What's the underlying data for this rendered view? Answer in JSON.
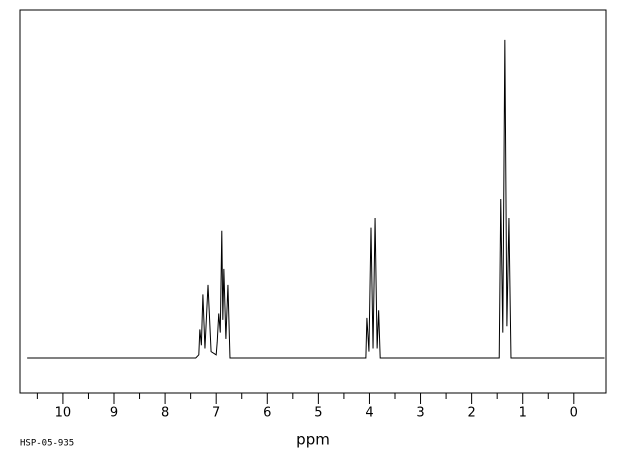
{
  "chart_data": {
    "type": "line",
    "code": "HSP-05-935",
    "x_label": "ppm",
    "x": [
      10.7,
      7.4,
      7.34,
      7.32,
      7.29,
      7.26,
      7.22,
      7.16,
      7.1,
      7.0,
      6.98,
      6.95,
      6.92,
      6.89,
      6.87,
      6.85,
      6.81,
      6.77,
      6.73,
      4.1,
      4.07,
      4.05,
      4.01,
      3.97,
      3.93,
      3.89,
      3.85,
      3.82,
      3.79,
      1.5,
      1.46,
      1.43,
      1.39,
      1.35,
      1.31,
      1.27,
      1.23,
      -0.6
    ],
    "values": [
      0,
      0,
      1,
      9,
      4,
      20,
      3,
      23,
      2,
      1,
      5,
      14,
      8,
      40,
      12,
      28,
      6,
      23,
      0,
      0,
      0,
      12.6,
      2,
      41,
      3,
      44,
      3,
      15,
      0,
      0,
      0,
      50,
      8,
      100,
      10,
      44,
      0,
      0
    ],
    "color": "#000000",
    "xlim": [
      10.84,
      -0.63
    ],
    "ylim": [
      -11,
      109.4
    ],
    "xticks": [
      10,
      9,
      8,
      7,
      6,
      5,
      4,
      3,
      2,
      1,
      0
    ],
    "xminorticks": [
      10.5,
      9.5,
      8.5,
      7.5,
      6.5,
      5.5,
      4.5,
      3.5,
      2.5,
      1.5,
      0.5
    ]
  }
}
